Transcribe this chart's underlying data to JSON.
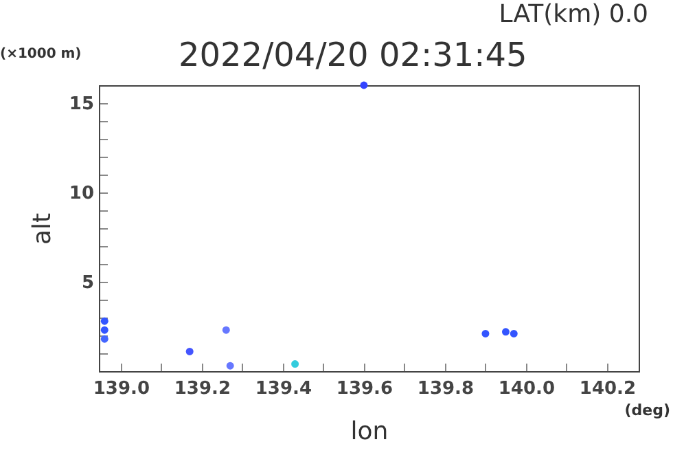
{
  "chart_data": {
    "type": "scatter",
    "title": "2022/04/20 02:31:45",
    "subtitle": "LAT(km) 0.0",
    "xlabel": "lon",
    "ylabel": "alt",
    "annotations": [
      "(×1000 m)",
      "(deg)"
    ],
    "x": [
      138.96,
      138.96,
      138.96,
      139.17,
      139.26,
      139.27,
      139.43,
      139.6,
      139.9,
      139.95,
      139.97
    ],
    "values": [
      2.8,
      2.3,
      1.8,
      1.1,
      2.3,
      0.3,
      0.4,
      16,
      2.1,
      2.2,
      2.1
    ],
    "colors": [
      "#3355ff",
      "#3355ff",
      "#4466ff",
      "#4455ff",
      "#6677ff",
      "#6677ff",
      "#33ccdd",
      "#3344ff",
      "#3355ff",
      "#3355ff",
      "#3355ff"
    ],
    "marker": "circle",
    "grid": false,
    "xlim": [
      138.946,
      140.278
    ],
    "xticks": [
      {
        "value": 139,
        "label": "139.0"
      },
      {
        "value": 139.1,
        "label": null
      },
      {
        "value": 139.2,
        "label": "139.2"
      },
      {
        "value": 139.3,
        "label": null
      },
      {
        "value": 139.4,
        "label": "139.4"
      },
      {
        "value": 139.5,
        "label": null
      },
      {
        "value": 139.6,
        "label": "139.6"
      },
      {
        "value": 139.7,
        "label": null
      },
      {
        "value": 139.8,
        "label": "139.8"
      },
      {
        "value": 139.9,
        "label": null
      },
      {
        "value": 140,
        "label": "140.0"
      },
      {
        "value": 140.1,
        "label": null
      },
      {
        "value": 140.2,
        "label": "140.2"
      }
    ],
    "ylim": [
      0,
      16
    ],
    "yticks": [
      {
        "value": 1,
        "label": null
      },
      {
        "value": 2,
        "label": null
      },
      {
        "value": 3,
        "label": null
      },
      {
        "value": 4,
        "label": null
      },
      5,
      {
        "value": 6,
        "label": null
      },
      {
        "value": 7,
        "label": null
      },
      {
        "value": 8,
        "label": null
      },
      {
        "value": 9,
        "label": null
      },
      10,
      {
        "value": 11,
        "label": null
      },
      {
        "value": 12,
        "label": null
      },
      {
        "value": 13,
        "label": null
      },
      {
        "value": 14,
        "label": null
      },
      15
    ]
  }
}
